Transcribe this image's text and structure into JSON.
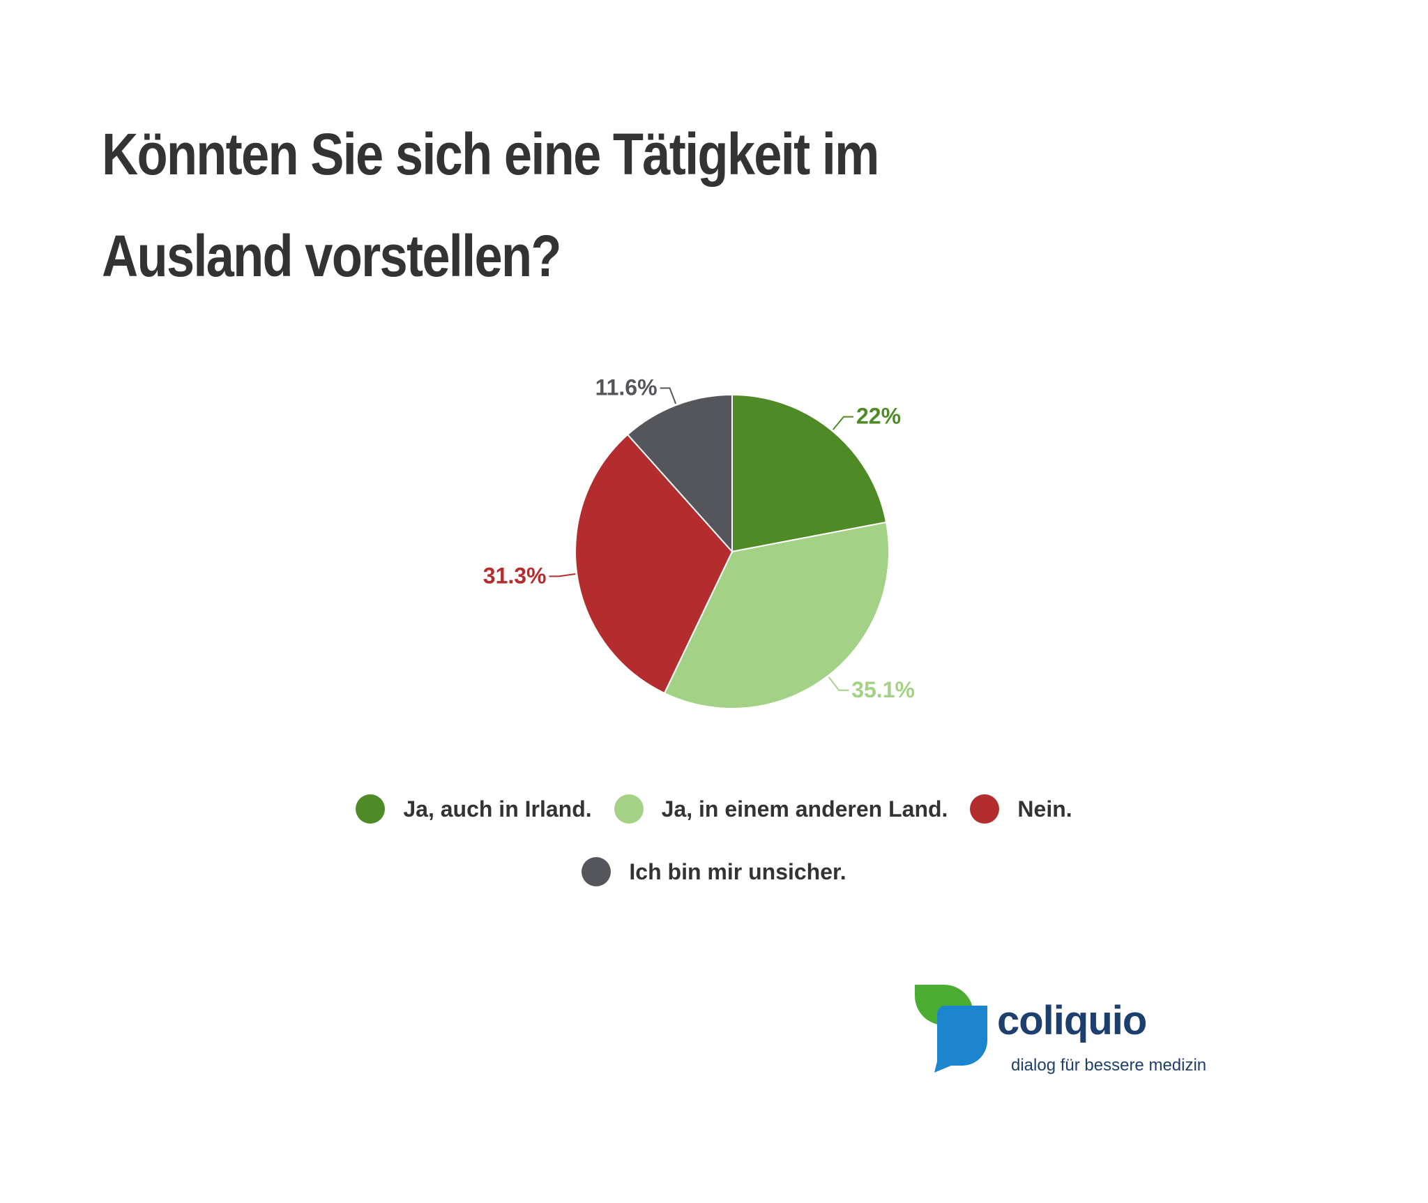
{
  "chart_data": {
    "type": "pie",
    "title": "Könnten Sie sich eine Tätigkeit im Ausland vorstellen?",
    "slices": [
      {
        "name": "Ja, auch in Irland.",
        "value": 22,
        "label": "22%",
        "color": "#4e8b26"
      },
      {
        "name": "Ja, in einem anderen Land.",
        "value": 35.1,
        "label": "35.1%",
        "color": "#a3d287"
      },
      {
        "name": "Nein.",
        "value": 31.3,
        "label": "31.3%",
        "color": "#b32d2e"
      },
      {
        "name": "Ich bin mir unsicher.",
        "value": 11.6,
        "label": "11.6%",
        "color": "#55565b"
      }
    ],
    "legend_position": "bottom"
  },
  "logo": {
    "name": "coliquio",
    "tagline": "dialog für bessere medizin",
    "green": "#4aad31",
    "blue": "#1b85d0"
  }
}
